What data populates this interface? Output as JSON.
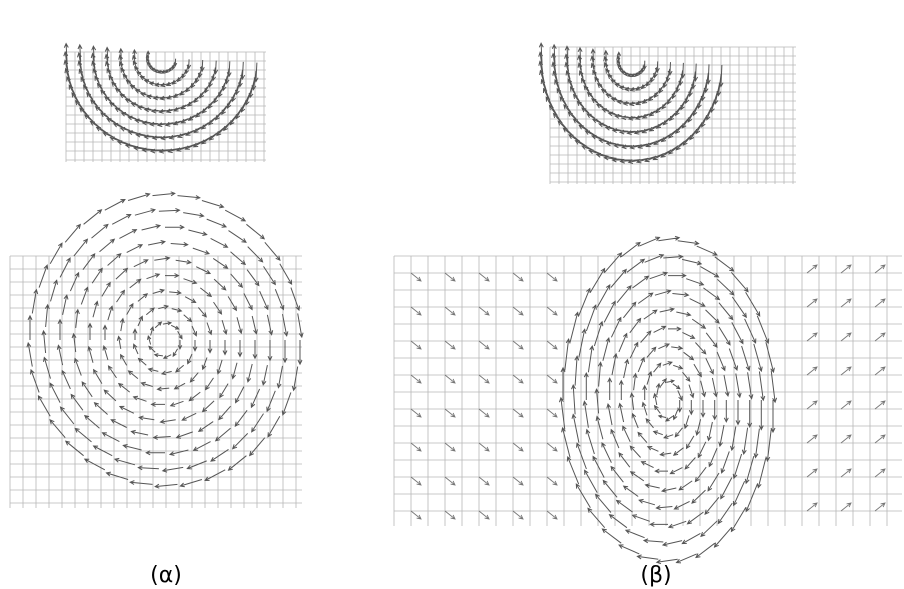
{
  "panels": [
    {
      "label": "(α)"
    },
    {
      "label": "(β)"
    }
  ]
}
